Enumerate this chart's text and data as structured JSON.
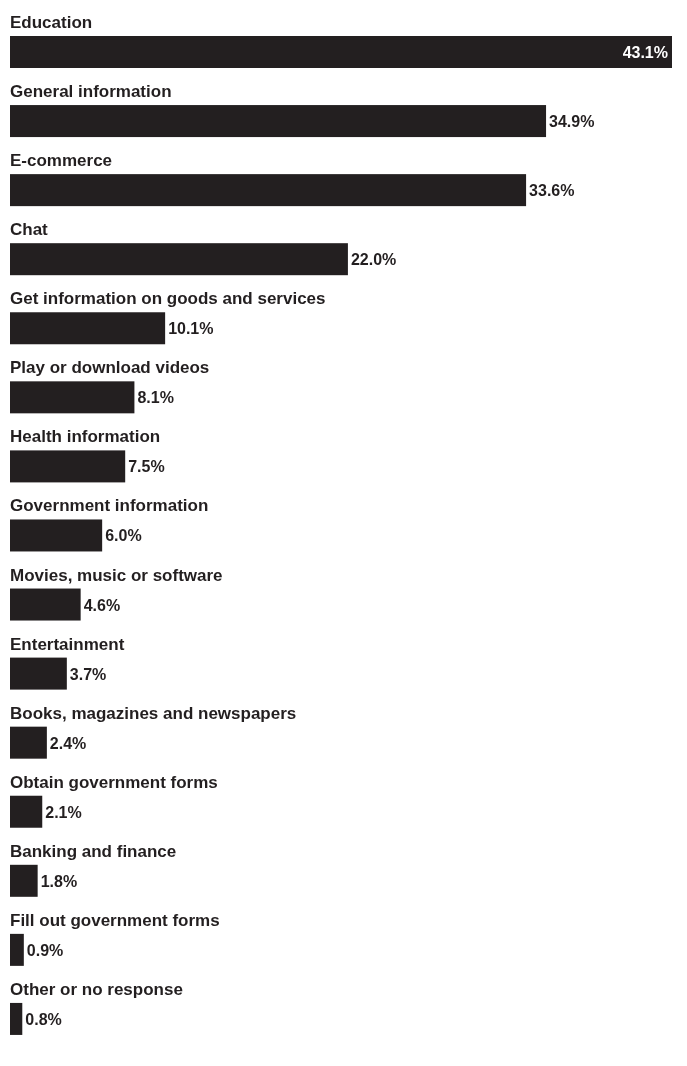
{
  "chart_data": {
    "type": "bar",
    "orientation": "horizontal",
    "categories": [
      "Education",
      "General information",
      "E-commerce",
      "Chat",
      "Get information on goods and services",
      "Play or download videos",
      "Health information",
      "Government information",
      "Movies, music or software",
      "Entertainment",
      "Books, magazines and newspapers",
      "Obtain government forms",
      "Banking and finance",
      "Fill out government forms",
      "Other or no response"
    ],
    "values": [
      43.1,
      34.9,
      33.6,
      22.0,
      10.1,
      8.1,
      7.5,
      6.0,
      4.6,
      3.7,
      2.4,
      2.1,
      1.8,
      0.9,
      0.8
    ],
    "value_labels": [
      "43.1%",
      "34.9%",
      "33.6%",
      "22.0%",
      "10.1%",
      "8.1%",
      "7.5%",
      "6.0%",
      "4.6%",
      "3.7%",
      "2.4%",
      "2.1%",
      "1.8%",
      "0.9%",
      "0.8%"
    ],
    "color": "#231f20"
  }
}
